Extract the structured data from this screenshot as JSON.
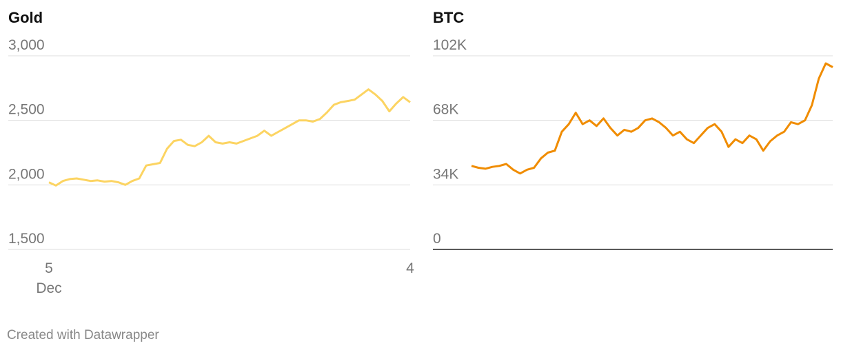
{
  "chart_data": [
    {
      "type": "line",
      "title": "Gold",
      "categories": [
        "5",
        null,
        null,
        null,
        null,
        null,
        null,
        null,
        null,
        null,
        null,
        null,
        null,
        null,
        null,
        null,
        null,
        null,
        null,
        null,
        null,
        null,
        null,
        null,
        null,
        null,
        null,
        null,
        null,
        null,
        null,
        null,
        null,
        null,
        null,
        null,
        null,
        null,
        null,
        null,
        null,
        null,
        null,
        null,
        null,
        null,
        null,
        null,
        null,
        null,
        null,
        null,
        "4"
      ],
      "month_label": "Dec",
      "series": [
        {
          "color": "#fcd462",
          "values": [
            2020,
            1995,
            2030,
            2045,
            2050,
            2040,
            2030,
            2035,
            2025,
            2030,
            2020,
            2000,
            2030,
            2050,
            2150,
            2160,
            2170,
            2280,
            2340,
            2350,
            2310,
            2300,
            2330,
            2380,
            2330,
            2320,
            2330,
            2320,
            2340,
            2360,
            2380,
            2420,
            2380,
            2410,
            2440,
            2470,
            2500,
            2500,
            2490,
            2510,
            2560,
            2620,
            2640,
            2650,
            2660,
            2700,
            2740,
            2700,
            2650,
            2570,
            2630,
            2680,
            2640
          ]
        }
      ],
      "ylim": [
        1500,
        3000
      ],
      "yticks": [
        {
          "value": 1500,
          "label": "1,500"
        },
        {
          "value": 2000,
          "label": "2,000"
        },
        {
          "value": 2500,
          "label": "2,500"
        },
        {
          "value": 3000,
          "label": "3,000"
        }
      ],
      "grid": true
    },
    {
      "type": "line",
      "title": "BTC",
      "series": [
        {
          "color": "#f08c00",
          "values": [
            44000,
            43000,
            42500,
            43500,
            44000,
            45000,
            42000,
            40000,
            42000,
            43000,
            48000,
            51000,
            52000,
            62000,
            66000,
            72000,
            66000,
            68000,
            65000,
            69000,
            64000,
            60000,
            63000,
            62000,
            64000,
            68000,
            69000,
            67000,
            64000,
            60000,
            62000,
            58000,
            56000,
            60000,
            64000,
            66000,
            62000,
            54000,
            58000,
            56000,
            60000,
            58000,
            52000,
            57000,
            60000,
            62000,
            67000,
            66000,
            68000,
            76000,
            90000,
            98000,
            96000
          ]
        }
      ],
      "ylim": [
        0,
        102000
      ],
      "yticks": [
        0,
        {
          "value": 34000,
          "label": "34K"
        },
        {
          "value": 68000,
          "label": "68K"
        },
        {
          "value": 102000,
          "label": "102K"
        }
      ],
      "grid": true
    }
  ],
  "footer": "Created with Datawrapper"
}
